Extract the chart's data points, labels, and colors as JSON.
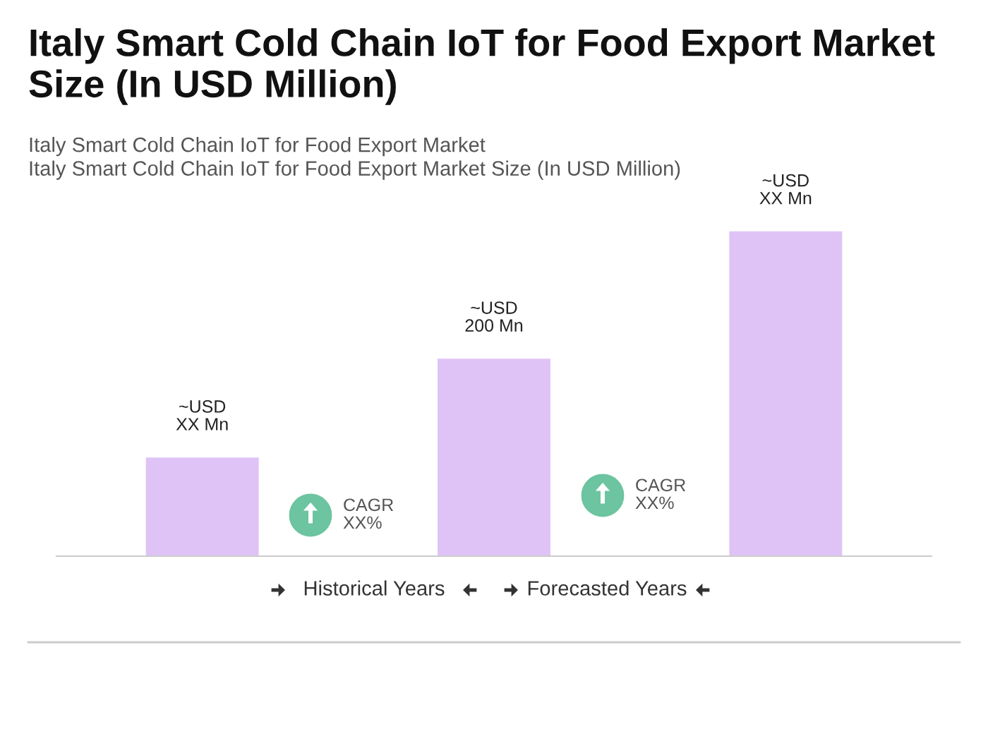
{
  "chart_data": {
    "type": "bar",
    "title": "Italy Smart Cold Chain IoT for Food Export Market Size (In USD Million)",
    "subtitle": "Italy Smart Cold Chain IoT for Food Export Market\nItaly Smart Cold Chain IoT for Food Export Market Size (In USD Million)",
    "categories": [
      null,
      null,
      null
    ],
    "values": [
      100,
      200,
      329
    ],
    "color": "#dfc3f7",
    "value_labels": [
      "~USD\nXX Mn",
      "~USD\n200 Mn",
      "~USD\nXX Mn"
    ],
    "annotations": [
      "CAGR\nXX%",
      "CAGR\nXX%",
      "Historical Years",
      "Forecasted Years"
    ],
    "grid": false,
    "legend": false
  }
}
